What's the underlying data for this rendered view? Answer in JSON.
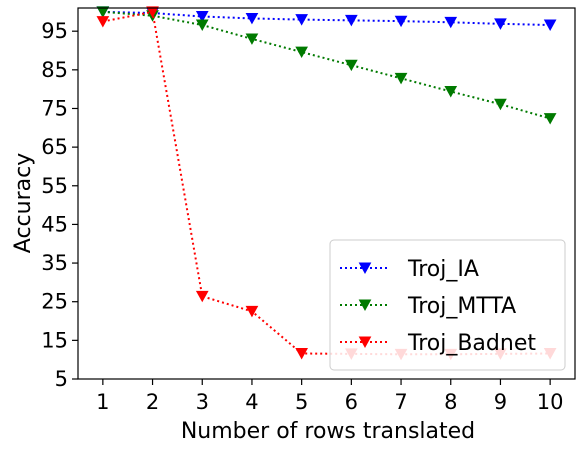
{
  "chart_data": {
    "type": "line",
    "xlabel": "Number of rows translated",
    "ylabel": "Accuracy",
    "x": [
      1,
      2,
      3,
      4,
      5,
      6,
      7,
      8,
      9,
      10
    ],
    "xticks": [
      "1",
      "2",
      "3",
      "4",
      "5",
      "6",
      "7",
      "8",
      "9",
      "10"
    ],
    "yticks": [
      "5",
      "15",
      "25",
      "35",
      "45",
      "55",
      "65",
      "75",
      "85",
      "95"
    ],
    "ylim": [
      5,
      101
    ],
    "xlim": [
      0.5,
      10.5
    ],
    "legend_position": "lower-right",
    "series": [
      {
        "name": "Troj_IA",
        "color": "#0000ff",
        "marker": "triangle-down",
        "line_style": "dotted",
        "values": [
          100,
          99.7,
          98.8,
          98.3,
          98.0,
          97.8,
          97.6,
          97.3,
          96.9,
          96.6
        ]
      },
      {
        "name": "Troj_MTTA",
        "color": "#007a00",
        "marker": "triangle-down",
        "line_style": "dotted",
        "values": [
          100,
          99.0,
          96.6,
          93.0,
          89.6,
          86.2,
          82.8,
          79.4,
          76.1,
          72.4
        ]
      },
      {
        "name": "Troj_Badnet",
        "color": "#ff0000",
        "marker": "triangle-down",
        "line_style": "dotted",
        "values": [
          97.5,
          100,
          26.4,
          22.5,
          11.6,
          11.5,
          11.4,
          11.4,
          11.5,
          11.6
        ]
      }
    ]
  }
}
